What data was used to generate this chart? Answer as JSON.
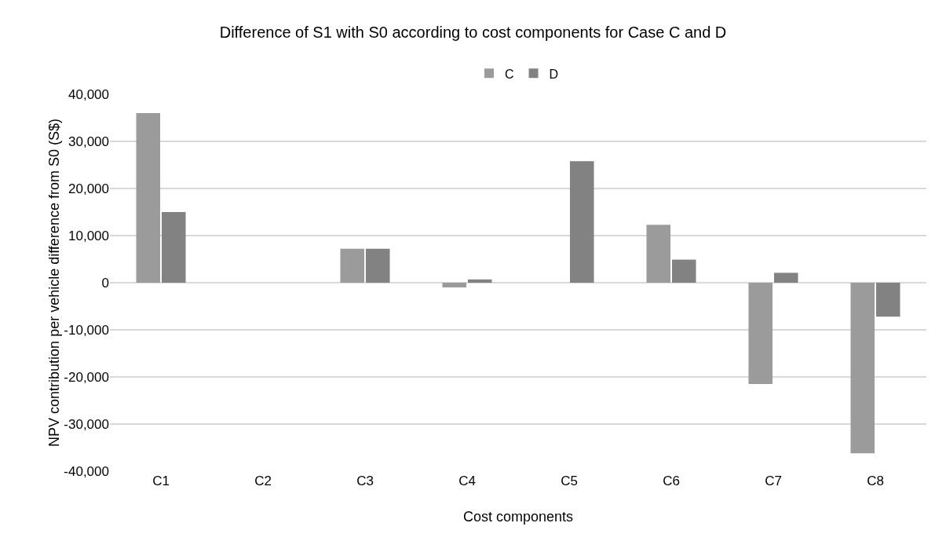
{
  "chart_data": {
    "type": "bar",
    "title": "Difference of S1 with S0 according to cost components for Case C and D",
    "xlabel": "Cost components",
    "ylabel": "NPV contribution per vehicle difference from S0 (S$)",
    "categories": [
      "C1",
      "C2",
      "C3",
      "C4",
      "C5",
      "C6",
      "C7",
      "C8"
    ],
    "series": [
      {
        "name": "C",
        "color": "#9b9b9b",
        "values": [
          36000,
          0,
          7200,
          -1000,
          0,
          12300,
          -21500,
          -36200
        ]
      },
      {
        "name": "D",
        "color": "#828282",
        "values": [
          15000,
          0,
          7200,
          700,
          25800,
          4900,
          2100,
          -7200
        ]
      }
    ],
    "ylim": [
      -40000,
      40000
    ],
    "yticks": [
      {
        "value": -40000,
        "label": "-40,000"
      },
      {
        "value": -30000,
        "label": "-30,000"
      },
      {
        "value": -20000,
        "label": "-20,000"
      },
      {
        "value": -10000,
        "label": "-10,000"
      },
      0,
      {
        "value": 10000,
        "label": "10,000"
      },
      {
        "value": 20000,
        "label": "20,000"
      },
      {
        "value": 30000,
        "label": "30,000"
      },
      {
        "value": 40000,
        "label": "40,000"
      }
    ],
    "grid": "y",
    "legend": "top"
  }
}
